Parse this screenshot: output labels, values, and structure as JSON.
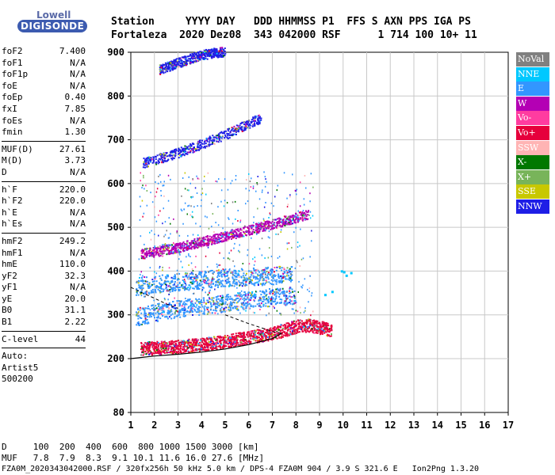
{
  "logo": {
    "line1": "Lowell",
    "line2": "DIGISONDE"
  },
  "header": {
    "line1": "Station     YYYY DAY   DDD HHMMSS P1  FFS S AXN PPS IGA PS",
    "line2": "Fortaleza  2020 Dez08  343 042000 RSF      1 714 100 10+ 11"
  },
  "params": {
    "group1": [
      {
        "label": "foF2",
        "value": "7.400"
      },
      {
        "label": "foF1",
        "value": "N/A"
      },
      {
        "label": "foF1p",
        "value": "N/A"
      },
      {
        "label": "foE",
        "value": "N/A"
      },
      {
        "label": "foEp",
        "value": "0.40"
      },
      {
        "label": "fxI",
        "value": "7.85"
      },
      {
        "label": "foEs",
        "value": "N/A"
      },
      {
        "label": "fmin",
        "value": "1.30"
      }
    ],
    "group2": [
      {
        "label": "MUF(D)",
        "value": "27.61"
      },
      {
        "label": "M(D)",
        "value": "3.73"
      },
      {
        "label": "D",
        "value": "N/A"
      }
    ],
    "group3": [
      {
        "label": "h`F",
        "value": "220.0"
      },
      {
        "label": "h`F2",
        "value": "220.0"
      },
      {
        "label": "h`E",
        "value": "N/A"
      },
      {
        "label": "h`Es",
        "value": "N/A"
      }
    ],
    "group4": [
      {
        "label": "hmF2",
        "value": "249.2"
      },
      {
        "label": "hmF1",
        "value": "N/A"
      },
      {
        "label": "hmE",
        "value": "110.0"
      },
      {
        "label": "yF2",
        "value": "32.3"
      },
      {
        "label": "yF1",
        "value": "N/A"
      },
      {
        "label": "yE",
        "value": "20.0"
      },
      {
        "label": "B0",
        "value": "31.1"
      },
      {
        "label": "B1",
        "value": "2.22"
      }
    ],
    "group5": [
      {
        "label": "C-level",
        "value": "44"
      }
    ],
    "auto": [
      "Auto:",
      "Artist5",
      "500200"
    ]
  },
  "legend": [
    {
      "label": "NoVal",
      "color": "#808080"
    },
    {
      "label": "NNE",
      "color": "#00c8ff"
    },
    {
      "label": "E",
      "color": "#3296ff"
    },
    {
      "label": "W",
      "color": "#b400b4"
    },
    {
      "label": "Vo-",
      "color": "#ff3ca0"
    },
    {
      "label": "Vo+",
      "color": "#e6003c"
    },
    {
      "label": "SSW",
      "color": "#ffb4b4"
    },
    {
      "label": "X-",
      "color": "#007800"
    },
    {
      "label": "X+",
      "color": "#78b45a"
    },
    {
      "label": "SSE",
      "color": "#c8c800"
    },
    {
      "label": "NNW",
      "color": "#1e1ee6"
    }
  ],
  "footer": {
    "d_line": "D     100  200  400  600  800 1000 1500 3000 [km]",
    "muf_line": "MUF   7.8  7.9  8.3  9.1 10.1 11.6 16.0 27.6 [MHz]",
    "file_line": "FZA0M_2020343042000.RSF / 320fx256h 50 kHz 5.0 km / DPS-4 FZA0M 904 / 3.9 S 321.6 E   Ion2Png 1.3.20"
  },
  "chart_data": {
    "type": "scatter",
    "x_ticks": [
      1,
      2,
      3,
      4,
      5,
      6,
      7,
      8,
      9,
      10,
      11,
      12,
      13,
      14,
      15,
      16,
      17
    ],
    "y_ticks": [
      80,
      200,
      300,
      400,
      500,
      600,
      700,
      800,
      900
    ],
    "xlim": [
      1,
      17
    ],
    "ylim": [
      80,
      900
    ],
    "grid": true,
    "legend_position": "right",
    "traces": [
      {
        "name": "1st hop F2",
        "color": "#e6003c",
        "x": [
          1.4,
          2,
          3,
          4,
          5,
          6,
          7,
          7.5,
          8,
          8.5,
          9,
          9.5
        ],
        "y": [
          220,
          221,
          224,
          229,
          236,
          245,
          255,
          262,
          270,
          272,
          268,
          262
        ]
      },
      {
        "name": "2nd hop F2",
        "color": "#b400b4",
        "x": [
          1.4,
          2,
          3,
          4,
          5,
          6,
          7,
          7.5,
          8,
          8.5
        ],
        "y": [
          437,
          442,
          452,
          465,
          478,
          492,
          505,
          512,
          520,
          528
        ]
      },
      {
        "name": "3rd hop F2",
        "color": "#1e1ee6",
        "x": [
          1.5,
          2,
          3,
          4,
          5,
          6,
          6.5
        ],
        "y": [
          645,
          652,
          668,
          688,
          710,
          735,
          748
        ]
      },
      {
        "name": "4th hop F2",
        "color": "#1e1ee6",
        "x": [
          2.2,
          3,
          4,
          5
        ],
        "y": [
          858,
          874,
          892,
          900
        ]
      },
      {
        "name": "oblique E",
        "color": "#3296ff",
        "x": [
          1.2,
          2,
          3,
          4,
          5,
          6,
          7,
          8
        ],
        "y": [
          290,
          300,
          310,
          315,
          322,
          330,
          336,
          340
        ]
      },
      {
        "name": "oblique E high",
        "color": "#3296ff",
        "x": [
          1.2,
          2,
          3,
          4,
          5,
          6,
          7,
          7.8
        ],
        "y": [
          360,
          365,
          370,
          375,
          380,
          382,
          385,
          388
        ]
      }
    ],
    "profile": {
      "x": [
        1,
        2,
        3,
        4,
        5,
        6,
        7,
        7.4
      ],
      "y": [
        200,
        206,
        210,
        215,
        222,
        232,
        246,
        258
      ]
    },
    "profile_dashed": {
      "x": [
        1,
        1.5,
        2,
        2.5,
        3
      ],
      "y": [
        363,
        350,
        338,
        325,
        315
      ]
    },
    "profile_dashed_high": {
      "x": [
        5,
        6,
        7,
        7.4
      ],
      "y": [
        300,
        280,
        262,
        258
      ]
    }
  }
}
